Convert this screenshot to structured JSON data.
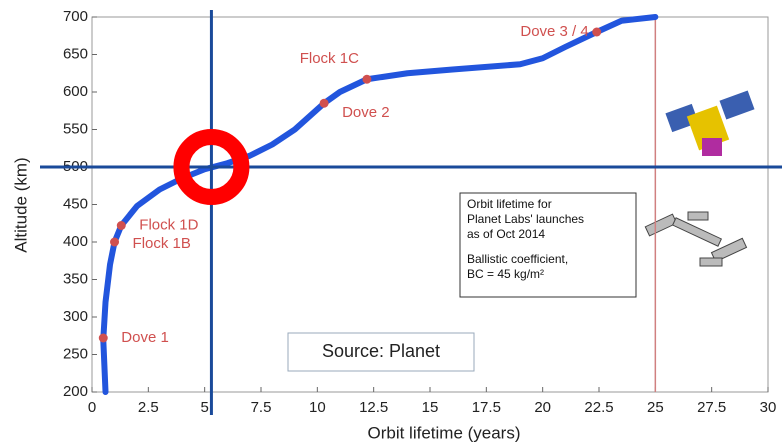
{
  "chart_data": {
    "type": "line",
    "x_label": "Orbit lifetime (years)",
    "y_label": "Altitude (km)",
    "xlim": [
      0,
      30
    ],
    "ylim": [
      200,
      700
    ],
    "xticks": [
      0,
      2.5,
      5,
      7.5,
      10,
      12.5,
      15,
      17.5,
      20,
      22.5,
      25,
      27.5,
      30
    ],
    "yticks": [
      200,
      250,
      300,
      350,
      400,
      450,
      500,
      550,
      600,
      650,
      700
    ],
    "x": [
      0.6,
      0.5,
      0.6,
      0.8,
      1.0,
      1.3,
      2,
      3,
      4,
      5,
      6,
      7,
      8,
      9,
      10.3,
      11,
      12.2,
      14,
      16,
      19,
      20,
      21,
      22.4,
      23.5,
      25
    ],
    "series": [
      {
        "color": "#2255dd",
        "values": [
          200,
          270,
          320,
          370,
          400,
          422,
          448,
          470,
          485,
          497,
          505,
          515,
          530,
          550,
          585,
          600,
          617,
          625,
          630,
          637,
          645,
          660,
          680,
          695,
          700
        ]
      }
    ],
    "points": [
      {
        "label": "Dove 1",
        "x": 0.5,
        "y": 272
      },
      {
        "label": "Flock 1B",
        "x": 1.0,
        "y": 400
      },
      {
        "label": "Flock 1D",
        "x": 1.3,
        "y": 422
      },
      {
        "label": "Dove 2",
        "x": 10.3,
        "y": 585
      },
      {
        "label": "Flock 1C",
        "x": 12.2,
        "y": 617
      },
      {
        "label": "Dove 3 / 4",
        "x": 22.4,
        "y": 680
      }
    ],
    "point_color": "#d0504f",
    "crosshair": {
      "x": 5.3,
      "y": 500,
      "color": "#1a4a9a"
    },
    "reference_x": 25,
    "reference_color": "#d08080",
    "note": [
      "Orbit lifetime for",
      "Planet Labs' launches",
      "as of Oct 2014",
      "Ballistic coefficient,",
      "BC = 45 kg/m²"
    ],
    "source": "Source: Planet"
  }
}
